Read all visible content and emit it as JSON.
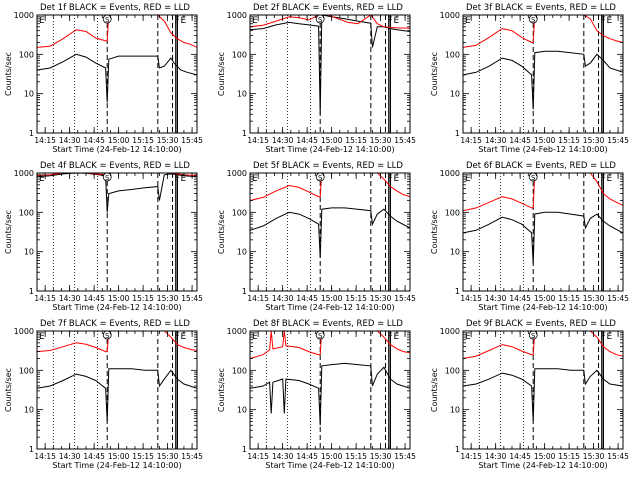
{
  "figure": {
    "background": "#ffffff",
    "axis_color": "#000000",
    "events_color": "#000000",
    "lld_color": "#ff0000"
  },
  "common": {
    "ylabel": "Counts/sec",
    "xlabel": "Start Time (24-Feb-12 14:10:00)",
    "x_ticks": [
      "14:15",
      "14:30",
      "14:45",
      "15:00",
      "15:15",
      "15:30",
      "15:45"
    ],
    "y_ticks": [
      "1",
      "10",
      "100",
      "1000"
    ],
    "markers": {
      "E": "E",
      "S": "S",
      "F": "F",
      "E2": "E"
    }
  },
  "chart_data": [
    {
      "type": "line",
      "title": "Det 1f BLACK = Events, RED = LLD",
      "x_units": "minutes after 14:10:00",
      "xlim": [
        0,
        98
      ],
      "ylim": [
        1,
        1000
      ],
      "y_scale": "log",
      "dotted_lines_x": [
        10,
        23,
        37
      ],
      "dashed_lines_x": [
        43,
        74,
        83
      ],
      "solid_lines_x": [
        85,
        86
      ],
      "series": [
        {
          "name": "Events",
          "color": "#000000",
          "x": [
            0,
            8,
            16,
            24,
            30,
            36,
            42,
            43,
            44,
            50,
            58,
            66,
            74,
            75,
            78,
            82,
            84,
            88,
            92,
            98
          ],
          "y": [
            40,
            45,
            65,
            100,
            85,
            60,
            45,
            6,
            75,
            90,
            90,
            90,
            90,
            45,
            50,
            80,
            60,
            40,
            35,
            30
          ]
        },
        {
          "name": "LLD",
          "color": "#ff0000",
          "x": [
            0,
            8,
            16,
            24,
            30,
            36,
            42,
            43,
            44,
            46,
            50,
            58,
            66,
            74,
            78,
            82,
            86,
            90,
            94,
            98
          ],
          "y": [
            150,
            160,
            250,
            420,
            380,
            260,
            220,
            220,
            1000,
            1000,
            1000,
            1000,
            1000,
            1000,
            700,
            350,
            250,
            200,
            180,
            150
          ]
        }
      ]
    },
    {
      "type": "line",
      "title": "Det 2f BLACK = Events, RED = LLD",
      "x_units": "minutes after 14:10:00",
      "xlim": [
        0,
        98
      ],
      "ylim": [
        1,
        1000
      ],
      "y_scale": "log",
      "dotted_lines_x": [
        10,
        23,
        37
      ],
      "dashed_lines_x": [
        43,
        74,
        83
      ],
      "solid_lines_x": [
        85,
        86
      ],
      "series": [
        {
          "name": "Events",
          "color": "#000000",
          "x": [
            0,
            8,
            16,
            24,
            30,
            36,
            42,
            43,
            44,
            50,
            58,
            66,
            74,
            75,
            78,
            82,
            86,
            90,
            98
          ],
          "y": [
            420,
            450,
            560,
            650,
            600,
            560,
            520,
            3,
            1000,
            900,
            800,
            700,
            620,
            150,
            500,
            500,
            450,
            420,
            380
          ]
        },
        {
          "name": "LLD",
          "color": "#ff0000",
          "x": [
            0,
            8,
            16,
            24,
            30,
            36,
            40,
            42,
            44,
            48,
            54,
            60,
            66,
            74,
            78,
            82,
            86,
            90,
            98
          ],
          "y": [
            500,
            550,
            700,
            900,
            850,
            750,
            900,
            1000,
            1000,
            1000,
            800,
            650,
            600,
            1000,
            600,
            500,
            480,
            470,
            460
          ]
        }
      ]
    },
    {
      "type": "line",
      "title": "Det 3f BLACK = Events, RED = LLD",
      "x_units": "minutes after 14:10:00",
      "xlim": [
        0,
        98
      ],
      "ylim": [
        1,
        1000
      ],
      "y_scale": "log",
      "dotted_lines_x": [
        10,
        23,
        37
      ],
      "dashed_lines_x": [
        43,
        74,
        83
      ],
      "solid_lines_x": [
        85,
        86
      ],
      "series": [
        {
          "name": "Events",
          "color": "#000000",
          "x": [
            0,
            8,
            16,
            24,
            30,
            36,
            42,
            43,
            44,
            50,
            58,
            66,
            74,
            75,
            78,
            82,
            86,
            90,
            98
          ],
          "y": [
            30,
            35,
            50,
            80,
            70,
            50,
            30,
            4,
            110,
            120,
            120,
            110,
            100,
            50,
            60,
            100,
            70,
            45,
            35
          ]
        },
        {
          "name": "LLD",
          "color": "#ff0000",
          "x": [
            0,
            8,
            16,
            24,
            30,
            36,
            42,
            43,
            44,
            50,
            58,
            66,
            74,
            78,
            82,
            86,
            90,
            94,
            98
          ],
          "y": [
            150,
            170,
            270,
            450,
            400,
            270,
            200,
            200,
            1000,
            1000,
            1000,
            1000,
            1000,
            800,
            400,
            300,
            250,
            220,
            200
          ]
        }
      ]
    },
    {
      "type": "line",
      "title": "Det 4f BLACK = Events, RED = LLD",
      "x_units": "minutes after 14:10:00",
      "xlim": [
        0,
        98
      ],
      "ylim": [
        1,
        1000
      ],
      "y_scale": "log",
      "dotted_lines_x": [
        10,
        23,
        37
      ],
      "dashed_lines_x": [
        43,
        74,
        83
      ],
      "solid_lines_x": [
        85,
        86
      ],
      "series": [
        {
          "name": "Events",
          "color": "#000000",
          "x": [
            0,
            8,
            16,
            24,
            30,
            36,
            42,
            43,
            44,
            50,
            58,
            66,
            74,
            75,
            78,
            82,
            86,
            90,
            98
          ],
          "y": [
            800,
            850,
            950,
            1000,
            980,
            920,
            850,
            100,
            300,
            350,
            380,
            420,
            450,
            200,
            900,
            950,
            900,
            850,
            800
          ]
        },
        {
          "name": "LLD",
          "color": "#ff0000",
          "x": [
            0,
            8,
            16,
            24,
            30,
            36,
            42,
            43,
            44,
            50,
            58,
            66,
            74,
            78,
            82,
            86,
            90,
            94,
            98
          ],
          "y": [
            850,
            900,
            1000,
            1050,
            1000,
            950,
            900,
            900,
            1000,
            1000,
            1000,
            1000,
            1000,
            1000,
            1000,
            950,
            900,
            880,
            860
          ]
        }
      ]
    },
    {
      "type": "line",
      "title": "Det 5f BLACK = Events, RED = LLD",
      "x_units": "minutes after 14:10:00",
      "xlim": [
        0,
        98
      ],
      "ylim": [
        1,
        1000
      ],
      "y_scale": "log",
      "dotted_lines_x": [
        10,
        23,
        37
      ],
      "dashed_lines_x": [
        43,
        74,
        83
      ],
      "solid_lines_x": [
        85,
        86
      ],
      "series": [
        {
          "name": "Events",
          "color": "#000000",
          "x": [
            0,
            8,
            16,
            24,
            30,
            36,
            42,
            43,
            44,
            50,
            58,
            66,
            74,
            75,
            78,
            82,
            86,
            90,
            98
          ],
          "y": [
            35,
            45,
            70,
            100,
            90,
            70,
            50,
            7,
            120,
            130,
            130,
            120,
            110,
            50,
            90,
            120,
            80,
            60,
            40
          ]
        },
        {
          "name": "LLD",
          "color": "#ff0000",
          "x": [
            0,
            8,
            16,
            24,
            30,
            36,
            42,
            43,
            44,
            50,
            58,
            66,
            74,
            78,
            82,
            86,
            90,
            94,
            98
          ],
          "y": [
            200,
            240,
            350,
            480,
            430,
            330,
            250,
            250,
            1000,
            1000,
            1000,
            1000,
            1000,
            1000,
            700,
            450,
            350,
            280,
            250
          ]
        }
      ]
    },
    {
      "type": "line",
      "title": "Det 6f BLACK = Events, RED = LLD",
      "x_units": "minutes after 14:10:00",
      "xlim": [
        0,
        98
      ],
      "ylim": [
        1,
        1000
      ],
      "y_scale": "log",
      "dotted_lines_x": [
        10,
        23,
        37
      ],
      "dashed_lines_x": [
        43,
        74,
        83
      ],
      "solid_lines_x": [
        85,
        86
      ],
      "series": [
        {
          "name": "Events",
          "color": "#000000",
          "x": [
            0,
            8,
            16,
            24,
            30,
            36,
            42,
            43,
            44,
            50,
            58,
            66,
            74,
            75,
            78,
            82,
            86,
            90,
            98
          ],
          "y": [
            30,
            35,
            50,
            75,
            65,
            50,
            30,
            5,
            90,
            100,
            100,
            90,
            80,
            40,
            70,
            90,
            60,
            45,
            30
          ]
        },
        {
          "name": "LLD",
          "color": "#ff0000",
          "x": [
            0,
            8,
            16,
            24,
            30,
            36,
            42,
            43,
            44,
            50,
            58,
            66,
            74,
            78,
            82,
            86,
            90,
            94,
            98
          ],
          "y": [
            110,
            130,
            180,
            250,
            220,
            170,
            130,
            130,
            1000,
            1000,
            1000,
            1000,
            1000,
            1000,
            600,
            300,
            220,
            180,
            150
          ]
        }
      ]
    },
    {
      "type": "line",
      "title": "Det 7f BLACK = Events, RED = LLD",
      "x_units": "minutes after 14:10:00",
      "xlim": [
        0,
        98
      ],
      "ylim": [
        1,
        1000
      ],
      "y_scale": "log",
      "dotted_lines_x": [
        10,
        23,
        37
      ],
      "dashed_lines_x": [
        43,
        74,
        83
      ],
      "solid_lines_x": [
        85,
        86
      ],
      "series": [
        {
          "name": "Events",
          "color": "#000000",
          "x": [
            0,
            8,
            16,
            24,
            30,
            36,
            42,
            43,
            44,
            50,
            58,
            66,
            74,
            75,
            78,
            82,
            86,
            90,
            98
          ],
          "y": [
            35,
            40,
            55,
            80,
            70,
            55,
            35,
            5,
            110,
            110,
            110,
            100,
            100,
            40,
            60,
            100,
            60,
            45,
            35
          ]
        },
        {
          "name": "LLD",
          "color": "#ff0000",
          "x": [
            0,
            8,
            16,
            24,
            30,
            36,
            42,
            43,
            44,
            50,
            58,
            66,
            74,
            78,
            82,
            86,
            90,
            94,
            98
          ],
          "y": [
            300,
            320,
            400,
            500,
            460,
            380,
            300,
            300,
            1000,
            1000,
            1000,
            1000,
            1000,
            1000,
            700,
            450,
            380,
            340,
            320
          ]
        }
      ]
    },
    {
      "type": "line",
      "title": "Det 8f BLACK = Events, RED = LLD",
      "x_units": "minutes after 14:10:00",
      "xlim": [
        0,
        98
      ],
      "ylim": [
        1,
        1000
      ],
      "y_scale": "log",
      "dotted_lines_x": [
        10,
        23,
        37
      ],
      "dashed_lines_x": [
        43,
        74,
        83
      ],
      "solid_lines_x": [
        85,
        86
      ],
      "series": [
        {
          "name": "Events",
          "color": "#000000",
          "x": [
            0,
            8,
            12,
            13,
            14,
            20,
            21,
            22,
            30,
            36,
            42,
            43,
            44,
            50,
            58,
            66,
            74,
            75,
            78,
            82,
            86,
            90,
            98
          ],
          "y": [
            35,
            40,
            50,
            8,
            50,
            60,
            8,
            60,
            55,
            45,
            35,
            4,
            130,
            140,
            150,
            140,
            130,
            40,
            80,
            120,
            60,
            45,
            35
          ]
        },
        {
          "name": "LLD",
          "color": "#ff0000",
          "x": [
            0,
            8,
            12,
            13,
            14,
            20,
            21,
            22,
            30,
            36,
            42,
            43,
            44,
            50,
            58,
            66,
            74,
            78,
            82,
            86,
            90,
            94,
            98
          ],
          "y": [
            200,
            250,
            330,
            1000,
            350,
            400,
            1000,
            420,
            380,
            300,
            250,
            250,
            1000,
            1000,
            1000,
            1000,
            1000,
            1000,
            700,
            450,
            350,
            300,
            280
          ]
        }
      ]
    },
    {
      "type": "line",
      "title": "Det 9f BLACK = Events, RED = LLD",
      "x_units": "minutes after 14:10:00",
      "xlim": [
        0,
        98
      ],
      "ylim": [
        1,
        1000
      ],
      "y_scale": "log",
      "dotted_lines_x": [
        10,
        23,
        37
      ],
      "dashed_lines_x": [
        43,
        74,
        83
      ],
      "solid_lines_x": [
        85,
        86
      ],
      "series": [
        {
          "name": "Events",
          "color": "#000000",
          "x": [
            0,
            8,
            16,
            24,
            30,
            36,
            42,
            43,
            44,
            50,
            58,
            66,
            74,
            75,
            78,
            82,
            86,
            90,
            98
          ],
          "y": [
            40,
            45,
            60,
            85,
            75,
            60,
            40,
            5,
            110,
            110,
            110,
            100,
            100,
            45,
            70,
            100,
            60,
            45,
            40
          ]
        },
        {
          "name": "LLD",
          "color": "#ff0000",
          "x": [
            0,
            8,
            16,
            24,
            30,
            36,
            42,
            43,
            44,
            50,
            58,
            66,
            74,
            78,
            82,
            86,
            90,
            94,
            98
          ],
          "y": [
            200,
            230,
            320,
            450,
            400,
            310,
            250,
            250,
            1000,
            1000,
            1000,
            1000,
            1000,
            1000,
            700,
            400,
            300,
            250,
            230
          ]
        }
      ]
    }
  ]
}
